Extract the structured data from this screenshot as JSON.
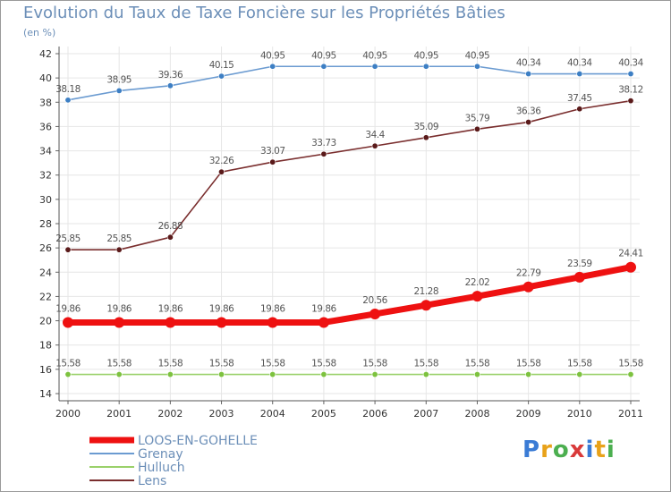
{
  "title": "Evolution du Taux de Taxe Foncière sur les Propriétés Bâties",
  "subtitle": "(en %)",
  "logo": {
    "letters": [
      "P",
      "r",
      "o",
      "x",
      "i",
      "t",
      "i"
    ],
    "colors": [
      "#3a7bd5",
      "#e8a21a",
      "#4caf50",
      "#d93a3a",
      "#3a7bd5",
      "#e8a21a",
      "#4caf50"
    ]
  },
  "chart_data": {
    "type": "line",
    "title": "Evolution du Taux de Taxe Foncière sur les Propriétés Bâties",
    "ylabel": "(en %)",
    "xlabel": "",
    "ylim": [
      14,
      42
    ],
    "yticks": [
      "14",
      "16",
      "18",
      "20",
      "22",
      "24",
      "26",
      "28",
      "30",
      "32",
      "34",
      "36",
      "38",
      "40",
      "42"
    ],
    "categories": [
      "2000",
      "2001",
      "2002",
      "2003",
      "2004",
      "2005",
      "2006",
      "2007",
      "2008",
      "2009",
      "2010",
      "2011"
    ],
    "grid": true,
    "legend_position": "bottom-left",
    "series": [
      {
        "name": "Grenay",
        "color": "#6b9bd1",
        "marker": "#3d7fc4",
        "weight": "thin",
        "values": [
          38.18,
          38.95,
          39.36,
          40.15,
          40.95,
          40.95,
          40.95,
          40.95,
          40.95,
          40.34,
          40.34,
          40.34
        ],
        "labels": [
          "38.18",
          "38.95",
          "39.36",
          "40.15",
          "40.95",
          "40.95",
          "40.95",
          "40.95",
          "40.95",
          "40.34",
          "40.34",
          "40.34"
        ]
      },
      {
        "name": "Lens",
        "color": "#7a2e2e",
        "marker": "#5a1a1a",
        "weight": "thin",
        "values": [
          25.85,
          25.85,
          26.88,
          32.26,
          33.07,
          33.73,
          34.4,
          35.09,
          35.79,
          36.36,
          37.45,
          38.12
        ],
        "labels": [
          "25.85",
          "25.85",
          "26.88",
          "32.26",
          "33.07",
          "33.73",
          "34.4",
          "35.09",
          "35.79",
          "36.36",
          "37.45",
          "38.12"
        ]
      },
      {
        "name": "Hulluch",
        "color": "#9ad16a",
        "marker": "#7dc23f",
        "weight": "thin",
        "values": [
          15.58,
          15.58,
          15.58,
          15.58,
          15.58,
          15.58,
          15.58,
          15.58,
          15.58,
          15.58,
          15.58,
          15.58
        ],
        "labels": [
          "15.58",
          "15.58",
          "15.58",
          "15.58",
          "15.58",
          "15.58",
          "15.58",
          "15.58",
          "15.58",
          "15.58",
          "15.58",
          "15.58"
        ]
      },
      {
        "name": "LOOS-EN-GOHELLE",
        "color": "#ee1111",
        "marker": "#ee1111",
        "weight": "thick",
        "values": [
          19.86,
          19.86,
          19.86,
          19.86,
          19.86,
          19.86,
          20.56,
          21.28,
          22.02,
          22.79,
          23.59,
          24.41
        ],
        "labels": [
          "19.86",
          "19.86",
          "19.86",
          "19.86",
          "19.86",
          "19.86",
          "20.56",
          "21.28",
          "22.02",
          "22.79",
          "23.59",
          "24.41"
        ]
      }
    ],
    "legend": [
      "LOOS-EN-GOHELLE",
      "Grenay",
      "Hulluch",
      "Lens"
    ]
  }
}
